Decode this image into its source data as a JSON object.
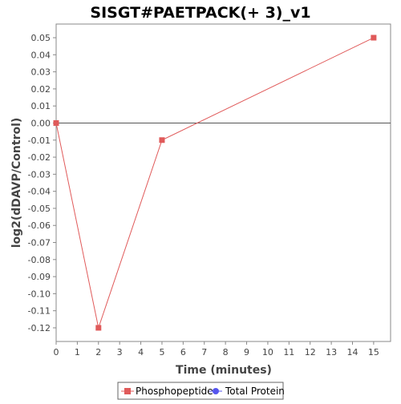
{
  "chart_data": {
    "type": "line",
    "title": "SISGT#PAETPACK(+ 3)_v1",
    "xlabel": "Time (minutes)",
    "ylabel": "log2(dDAVP/Control)",
    "xlim": [
      0,
      15.8
    ],
    "ylim": [
      -0.128,
      0.058
    ],
    "xticks": [
      0,
      1,
      2,
      3,
      4,
      5,
      6,
      7,
      8,
      9,
      10,
      11,
      12,
      13,
      14,
      15
    ],
    "yticks": [
      0.05,
      0.04,
      0.03,
      0.02,
      0.01,
      0.0,
      -0.01,
      -0.02,
      -0.03,
      -0.04,
      -0.05,
      -0.06,
      -0.07,
      -0.08,
      -0.09,
      -0.1,
      -0.11,
      -0.12
    ],
    "ytick_labels": [
      "0.05",
      "0.04",
      "0.03",
      "0.02",
      "0.01",
      "0.00",
      "-0.01",
      "-0.02",
      "-0.03",
      "-0.04",
      "-0.05",
      "-0.06",
      "-0.07",
      "-0.08",
      "-0.09",
      "-0.10",
      "-0.11",
      "-0.12"
    ],
    "zero_line": true,
    "grid": false,
    "legend_position": "bottom-center",
    "series": [
      {
        "name": "Phosphopeptide",
        "color": "#e05a5a",
        "marker": "square",
        "x": [
          0,
          2,
          5,
          15
        ],
        "y": [
          0.0,
          -0.12,
          -0.01,
          0.05
        ]
      },
      {
        "name": "Total Protein",
        "color": "#5555ee",
        "marker": "circle",
        "x": [],
        "y": []
      }
    ]
  }
}
